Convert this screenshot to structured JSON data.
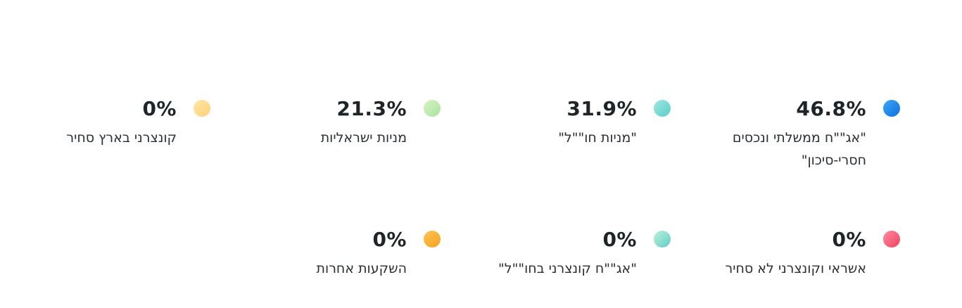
{
  "legend": {
    "items": [
      {
        "percent": "46.8%",
        "label": "\"אג\"\"ח ממשלתי ונכסים\nחסרי-סיכון\"",
        "color": "#0a6fe0",
        "dot_icon": "circle-dot-icon"
      },
      {
        "percent": "31.9%",
        "label": "\"מניות חו\"\"ל\"",
        "color": "#5ccfc6",
        "dot_icon": "circle-dot-icon"
      },
      {
        "percent": "21.3%",
        "label": "מניות ישראליות",
        "color": "#a9e29b",
        "dot_icon": "circle-dot-icon"
      },
      {
        "percent": "0%",
        "label": "קונצרני בארץ סחיר",
        "color": "#fcd27a",
        "dot_icon": "circle-dot-icon"
      },
      {
        "percent": "0%",
        "label": "אשראי וקונצרני לא סחיר",
        "color": "#f2435e",
        "dot_icon": "circle-dot-icon"
      },
      {
        "percent": "0%",
        "label": "\"אג\"\"ח קונצרני בחו\"\"ל\"",
        "color": "#5ccfc6",
        "dot_icon": "circle-dot-icon"
      },
      {
        "percent": "0%",
        "label": "השקעות אחרות",
        "color": "#f6a11a",
        "dot_icon": "circle-dot-icon"
      }
    ]
  }
}
